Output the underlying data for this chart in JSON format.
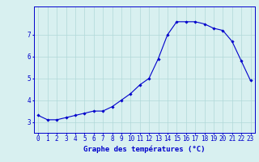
{
  "hours": [
    0,
    1,
    2,
    3,
    4,
    5,
    6,
    7,
    8,
    9,
    10,
    11,
    12,
    13,
    14,
    15,
    16,
    17,
    18,
    19,
    20,
    21,
    22,
    23
  ],
  "temps": [
    3.3,
    3.1,
    3.1,
    3.2,
    3.3,
    3.4,
    3.5,
    3.5,
    3.7,
    4.0,
    4.3,
    4.7,
    5.0,
    5.9,
    7.0,
    7.6,
    7.6,
    7.6,
    7.5,
    7.3,
    7.2,
    6.7,
    5.8,
    4.9
  ],
  "line_color": "#0000cc",
  "marker": "D",
  "marker_size": 1.8,
  "bg_color": "#d8f0f0",
  "grid_color": "#b0d8d8",
  "axis_color": "#0000cc",
  "xlabel": "Graphe des températures (°C)",
  "ylim": [
    2.5,
    8.3
  ],
  "yticks": [
    3,
    4,
    5,
    6,
    7
  ],
  "xlim": [
    -0.5,
    23.5
  ],
  "xlabel_fontsize": 6.5,
  "tick_fontsize": 5.5
}
